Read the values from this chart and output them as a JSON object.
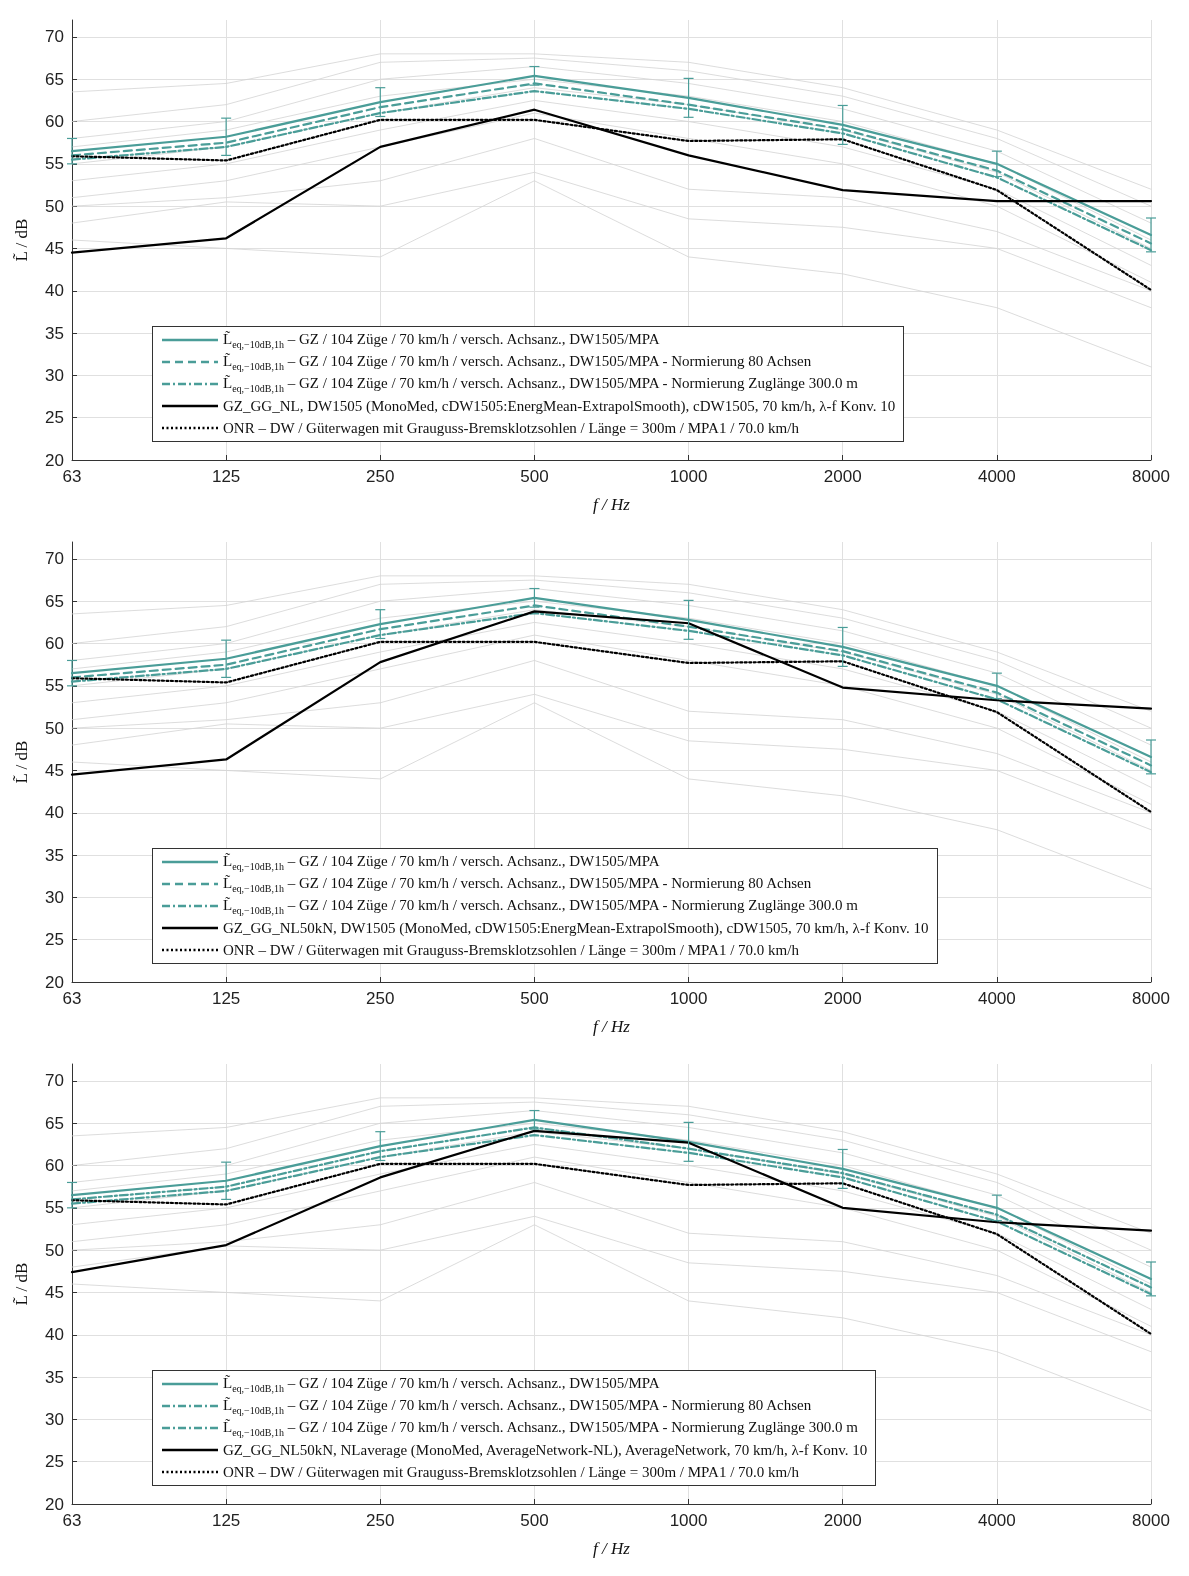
{
  "chart_data": [
    {
      "type": "line",
      "xlabel": "f / Hz",
      "ylabel": "L̃ / dB",
      "categories": [
        "63",
        "125",
        "250",
        "500",
        "1000",
        "2000",
        "4000",
        "8000"
      ],
      "ylim": [
        20,
        72
      ],
      "yticks": [
        20,
        25,
        30,
        35,
        40,
        45,
        50,
        55,
        60,
        65,
        70
      ],
      "grid": true,
      "legend": "bottom left",
      "marker": "none",
      "series": [
        {
          "color": "#d3d3d3",
          "line_style": "solid",
          "values": [
            63.5,
            64.5,
            68,
            68,
            67,
            64,
            59,
            52
          ]
        },
        {
          "color": "#d3d3d3",
          "line_style": "solid",
          "values": [
            60,
            62,
            67,
            67.5,
            66,
            63,
            58,
            50
          ]
        },
        {
          "color": "#d3d3d3",
          "line_style": "solid",
          "values": [
            58,
            60,
            65,
            66.5,
            64.5,
            61.5,
            56.5,
            48
          ]
        },
        {
          "color": "#d3d3d3",
          "line_style": "solid",
          "values": [
            57,
            59,
            63,
            65,
            63,
            60,
            55,
            46
          ]
        },
        {
          "color": "#d3d3d3",
          "line_style": "solid",
          "values": [
            55,
            57,
            61,
            64,
            62,
            59,
            54,
            45
          ]
        },
        {
          "color": "#d3d3d3",
          "line_style": "solid",
          "values": [
            53,
            55,
            59,
            62.5,
            60,
            57,
            52,
            43
          ]
        },
        {
          "color": "#d3d3d3",
          "line_style": "solid",
          "values": [
            51,
            53,
            57,
            61,
            58,
            55,
            50,
            41
          ]
        },
        {
          "color": "#d3d3d3",
          "line_style": "solid",
          "values": [
            50,
            51,
            53,
            58,
            52,
            51,
            47,
            40
          ]
        },
        {
          "color": "#d3d3d3",
          "line_style": "solid",
          "values": [
            48,
            50.5,
            50,
            54,
            48.5,
            47.5,
            45,
            38
          ]
        },
        {
          "color": "#d3d3d3",
          "line_style": "solid",
          "values": [
            46,
            45,
            44,
            53,
            44,
            42,
            38,
            31
          ]
        },
        {
          "name": "L̃$_{eq,−10dB,1h}$ – GZ / 104 Züge / 70 km/h / versch. Achsanz., DW1505/MPA",
          "color": "#4a9d98",
          "line_style": "solid",
          "values": [
            56.5,
            58.2,
            62.3,
            65.4,
            62.8,
            59.6,
            55.0,
            46.6
          ],
          "errors": [
            1.5,
            2.2,
            1.7,
            1.1,
            2.3,
            2.3,
            1.5,
            2.0
          ]
        },
        {
          "name": "L̃$_{eq,−10dB,1h}$ – GZ / 104 Züge / 70 km/h / versch. Achsanz., DW1505/MPA - Normierung 80 Achsen",
          "color": "#4a9d98",
          "line_style": "dashed",
          "values": [
            56.0,
            57.5,
            61.7,
            64.5,
            62.0,
            59.1,
            54.2,
            45.6
          ]
        },
        {
          "name": "L̃$_{eq,−10dB,1h}$ – GZ / 104 Züge / 70 km/h / versch. Achsanz., DW1505/MPA - Normierung Zuglänge 300.0 m",
          "color": "#4a9d98",
          "line_style": "dashdot",
          "values": [
            55.5,
            57.0,
            61.0,
            63.6,
            61.5,
            58.6,
            53.4,
            44.8
          ]
        },
        {
          "name": "GZ_GG_NL, DW1505 (MonoMed, cDW1505:EnergMean-ExtrapolSmooth), cDW1505, 70 km/h, λ-f Konv. 10",
          "color": "#000000",
          "line_style": "solid",
          "values": [
            44.5,
            46.2,
            57.0,
            61.4,
            56.0,
            51.9,
            50.6,
            50.6
          ]
        },
        {
          "name": "ONR – DW / Güterwagen mit Grauguss-Bremsklotzsohlen / Länge = 300m / MPA1 / 70.0 km/h",
          "color": "#000000",
          "line_style": "dotted",
          "values": [
            55.9,
            55.4,
            60.2,
            60.2,
            57.7,
            57.9,
            51.9,
            40.1
          ]
        }
      ]
    },
    {
      "type": "line",
      "xlabel": "f / Hz",
      "ylabel": "L̃ / dB",
      "categories": [
        "63",
        "125",
        "250",
        "500",
        "1000",
        "2000",
        "4000",
        "8000"
      ],
      "ylim": [
        20,
        72
      ],
      "yticks": [
        20,
        25,
        30,
        35,
        40,
        45,
        50,
        55,
        60,
        65,
        70
      ],
      "grid": true,
      "legend": "bottom left",
      "marker": "none",
      "series": [
        {
          "color": "#d3d3d3",
          "line_style": "solid",
          "values": [
            63.5,
            64.5,
            68,
            68,
            67,
            64,
            59,
            52
          ]
        },
        {
          "color": "#d3d3d3",
          "line_style": "solid",
          "values": [
            60,
            62,
            67,
            67.5,
            66,
            63,
            58,
            50
          ]
        },
        {
          "color": "#d3d3d3",
          "line_style": "solid",
          "values": [
            58,
            60,
            65,
            66.5,
            64.5,
            61.5,
            56.5,
            48
          ]
        },
        {
          "color": "#d3d3d3",
          "line_style": "solid",
          "values": [
            57,
            59,
            63,
            65,
            63,
            60,
            55,
            46
          ]
        },
        {
          "color": "#d3d3d3",
          "line_style": "solid",
          "values": [
            55,
            57,
            61,
            64,
            62,
            59,
            54,
            45
          ]
        },
        {
          "color": "#d3d3d3",
          "line_style": "solid",
          "values": [
            53,
            55,
            59,
            62.5,
            60,
            57,
            52,
            43
          ]
        },
        {
          "color": "#d3d3d3",
          "line_style": "solid",
          "values": [
            51,
            53,
            57,
            61,
            58,
            55,
            50,
            41
          ]
        },
        {
          "color": "#d3d3d3",
          "line_style": "solid",
          "values": [
            50,
            51,
            53,
            58,
            52,
            51,
            47,
            40
          ]
        },
        {
          "color": "#d3d3d3",
          "line_style": "solid",
          "values": [
            48,
            50.5,
            50,
            54,
            48.5,
            47.5,
            45,
            38
          ]
        },
        {
          "color": "#d3d3d3",
          "line_style": "solid",
          "values": [
            46,
            45,
            44,
            53,
            44,
            42,
            38,
            31
          ]
        },
        {
          "name": "L̃$_{eq,−10dB,1h}$ – GZ / 104 Züge / 70 km/h / versch. Achsanz., DW1505/MPA",
          "color": "#4a9d98",
          "line_style": "solid",
          "values": [
            56.5,
            58.2,
            62.3,
            65.4,
            62.8,
            59.6,
            55.0,
            46.6
          ],
          "errors": [
            1.5,
            2.2,
            1.7,
            1.1,
            2.3,
            2.3,
            1.5,
            2.0
          ]
        },
        {
          "name": "L̃$_{eq,−10dB,1h}$ – GZ / 104 Züge / 70 km/h / versch. Achsanz., DW1505/MPA - Normierung 80 Achsen",
          "color": "#4a9d98",
          "line_style": "dashed",
          "values": [
            56.0,
            57.5,
            61.7,
            64.5,
            62.0,
            59.1,
            54.2,
            45.6
          ]
        },
        {
          "name": "L̃$_{eq,−10dB,1h}$ – GZ / 104 Züge / 70 km/h / versch. Achsanz., DW1505/MPA - Normierung Zuglänge 300.0 m",
          "color": "#4a9d98",
          "line_style": "dashdot",
          "values": [
            55.5,
            57.0,
            61.0,
            63.6,
            61.5,
            58.6,
            53.4,
            44.8
          ]
        },
        {
          "name": "GZ_GG_NL50kN, DW1505 (MonoMed, cDW1505:EnergMean-ExtrapolSmooth), cDW1505, 70 km/h, λ-f Konv. 10",
          "color": "#000000",
          "line_style": "solid",
          "values": [
            44.5,
            46.3,
            57.8,
            63.8,
            62.4,
            54.8,
            53.3,
            52.3
          ]
        },
        {
          "name": "ONR – DW / Güterwagen mit Grauguss-Bremsklotzsohlen / Länge = 300m / MPA1 / 70.0 km/h",
          "color": "#000000",
          "line_style": "dotted",
          "values": [
            55.9,
            55.4,
            60.2,
            60.2,
            57.7,
            57.9,
            51.9,
            40.1
          ]
        }
      ]
    },
    {
      "type": "line",
      "xlabel": "f / Hz",
      "ylabel": "L̃ / dB",
      "categories": [
        "63",
        "125",
        "250",
        "500",
        "1000",
        "2000",
        "4000",
        "8000"
      ],
      "ylim": [
        20,
        72
      ],
      "yticks": [
        20,
        25,
        30,
        35,
        40,
        45,
        50,
        55,
        60,
        65,
        70
      ],
      "grid": true,
      "legend": "bottom left",
      "marker": "none",
      "series": [
        {
          "color": "#d3d3d3",
          "line_style": "solid",
          "values": [
            63.5,
            64.5,
            68,
            68,
            67,
            64,
            59,
            52
          ]
        },
        {
          "color": "#d3d3d3",
          "line_style": "solid",
          "values": [
            60,
            62,
            67,
            67.5,
            66,
            63,
            58,
            50
          ]
        },
        {
          "color": "#d3d3d3",
          "line_style": "solid",
          "values": [
            58,
            60,
            65,
            66.5,
            64.5,
            61.5,
            56.5,
            48
          ]
        },
        {
          "color": "#d3d3d3",
          "line_style": "solid",
          "values": [
            57,
            59,
            63,
            65,
            63,
            60,
            55,
            46
          ]
        },
        {
          "color": "#d3d3d3",
          "line_style": "solid",
          "values": [
            55,
            57,
            61,
            64,
            62,
            59,
            54,
            45
          ]
        },
        {
          "color": "#d3d3d3",
          "line_style": "solid",
          "values": [
            53,
            55,
            59,
            62.5,
            60,
            57,
            52,
            43
          ]
        },
        {
          "color": "#d3d3d3",
          "line_style": "solid",
          "values": [
            51,
            53,
            57,
            61,
            58,
            55,
            50,
            41
          ]
        },
        {
          "color": "#d3d3d3",
          "line_style": "solid",
          "values": [
            50,
            51,
            53,
            58,
            52,
            51,
            47,
            40
          ]
        },
        {
          "color": "#d3d3d3",
          "line_style": "solid",
          "values": [
            48,
            50.5,
            50,
            54,
            48.5,
            47.5,
            45,
            38
          ]
        },
        {
          "color": "#d3d3d3",
          "line_style": "solid",
          "values": [
            46,
            45,
            44,
            53,
            44,
            42,
            38,
            31
          ]
        },
        {
          "name": "L̃$_{eq,−10dB,1h}$ – GZ / 104 Züge / 70 km/h / versch. Achsanz., DW1505/MPA",
          "color": "#4a9d98",
          "line_style": "solid",
          "values": [
            56.5,
            58.2,
            62.3,
            65.4,
            62.8,
            59.6,
            55.0,
            46.6
          ],
          "errors": [
            1.5,
            2.2,
            1.7,
            1.1,
            2.3,
            2.3,
            1.5,
            2.0
          ]
        },
        {
          "name": "L̃$_{eq,−10dB,1h}$ – GZ / 104 Züge / 70 km/h / versch. Achsanz., DW1505/MPA - Normierung 80 Achsen",
          "color": "#4a9d98",
          "line_style": "dashdot",
          "values": [
            56.0,
            57.5,
            61.7,
            64.5,
            62.0,
            59.1,
            54.2,
            45.6
          ]
        },
        {
          "name": "L̃$_{eq,−10dB,1h}$ – GZ / 104 Züge / 70 km/h / versch. Achsanz., DW1505/MPA - Normierung Zuglänge 300.0 m",
          "color": "#4a9d98",
          "line_style": "dashdot",
          "values": [
            55.5,
            57.0,
            61.0,
            63.6,
            61.5,
            58.6,
            53.4,
            44.8
          ]
        },
        {
          "name": "GZ_GG_NL50kN, NLaverage (MonoMed, AverageNetwork-NL), AverageNetwork, 70 km/h, λ-f Konv. 10",
          "color": "#000000",
          "line_style": "solid",
          "values": [
            47.4,
            50.6,
            58.6,
            64.1,
            62.7,
            55.0,
            53.3,
            52.3
          ]
        },
        {
          "name": "ONR – DW / Güterwagen mit Grauguss-Bremsklotzsohlen / Länge = 300m / MPA1 / 70.0 km/h",
          "color": "#000000",
          "line_style": "dotted",
          "values": [
            55.9,
            55.4,
            60.2,
            60.2,
            57.7,
            57.9,
            51.9,
            40.1
          ]
        }
      ]
    }
  ]
}
